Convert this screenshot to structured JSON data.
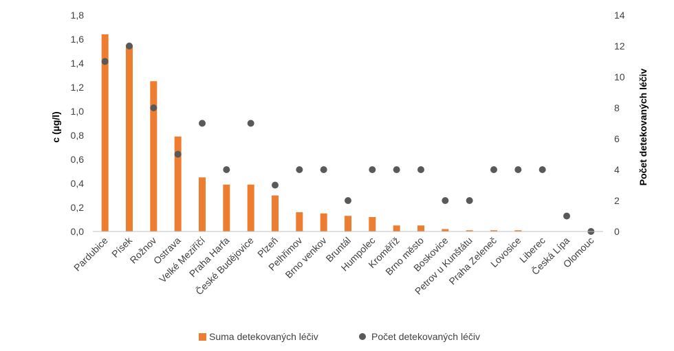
{
  "chart_data": {
    "type": "bar",
    "categories": [
      "Pardubice",
      "Písek",
      "Rožnov",
      "Ostrava",
      "Velké Meziříčí",
      "Praha Harfa",
      "České Budějovice",
      "Plzeň",
      "Pelhřimov",
      "Brno venkov",
      "Bruntál",
      "Humpolec",
      "Kroměříž",
      "Brno město",
      "Boskovice",
      "Petrov u Kunštátu",
      "Praha Zeleneč",
      "Lovosice",
      "Liberec",
      "Česká Lípa",
      "Olomouc"
    ],
    "series": [
      {
        "name": "Suma detekovaných léčiv",
        "type": "bar",
        "axis": "left",
        "color": "#ED7D31",
        "values": [
          1.64,
          1.55,
          1.25,
          0.79,
          0.45,
          0.39,
          0.39,
          0.3,
          0.16,
          0.15,
          0.13,
          0.12,
          0.05,
          0.05,
          0.02,
          0.01,
          0.01,
          0.01,
          0.0,
          0.0,
          0.0
        ]
      },
      {
        "name": "Počet detekovaných léčiv",
        "type": "scatter",
        "axis": "right",
        "color": "#595959",
        "values": [
          11,
          12,
          8,
          5,
          7,
          4,
          7,
          3,
          4,
          4,
          2,
          4,
          4,
          4,
          2,
          2,
          4,
          4,
          4,
          1,
          0
        ]
      }
    ],
    "ylabel_left": "c (µg/l)",
    "ylabel_right": "Počet detekovaných léčiv",
    "ylim_left": [
      0,
      1.8
    ],
    "ylim_right": [
      0,
      14
    ],
    "yticks_left": [
      "0,0",
      "0,2",
      "0,4",
      "0,6",
      "0,8",
      "1,0",
      "1,2",
      "1,4",
      "1,6",
      "1,8"
    ],
    "yticks_right": [
      "0",
      "2",
      "4",
      "6",
      "8",
      "10",
      "12",
      "14"
    ],
    "grid": false,
    "legend_position": "bottom"
  }
}
